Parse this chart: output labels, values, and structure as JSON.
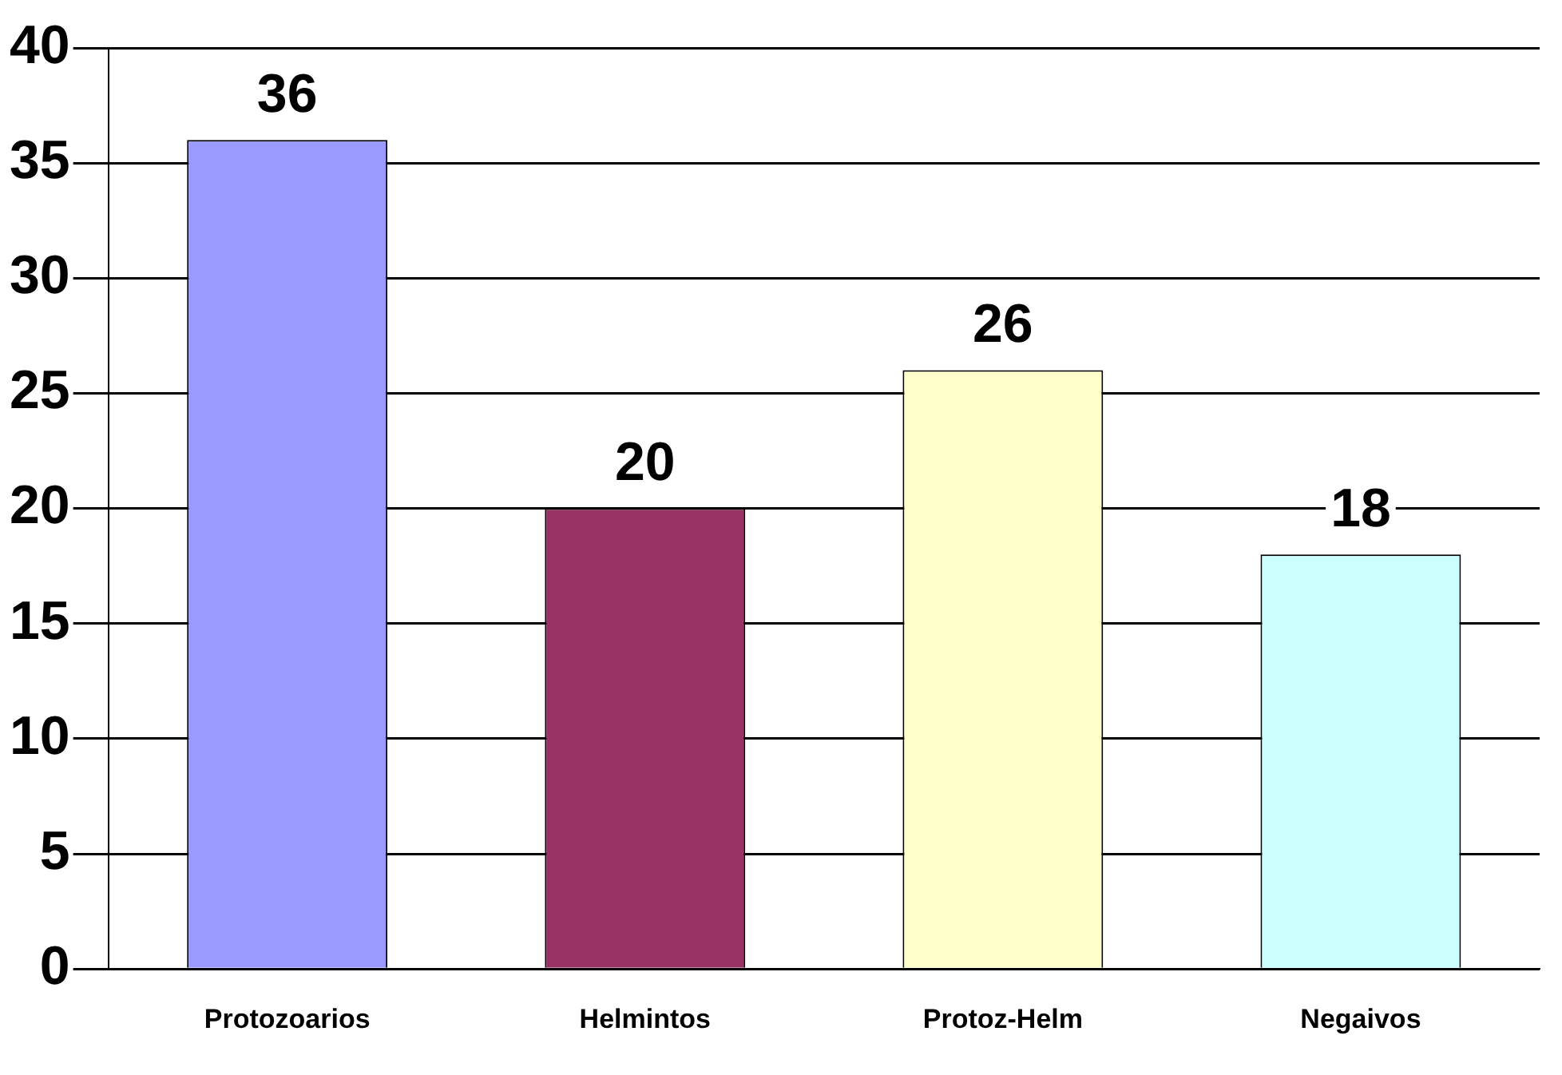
{
  "chart_data": {
    "type": "bar",
    "categories": [
      "Protozoarios",
      "Helmintos",
      "Protoz-Helm",
      "Negaivos"
    ],
    "values": [
      36,
      20,
      26,
      18
    ],
    "colors": [
      "#9999ff",
      "#993366",
      "#ffffcc",
      "#ccffff"
    ],
    "ylim": [
      0,
      40
    ],
    "yticks": [
      0,
      5,
      10,
      15,
      20,
      25,
      30,
      35,
      40
    ],
    "grid": "y",
    "data_labels": true
  }
}
